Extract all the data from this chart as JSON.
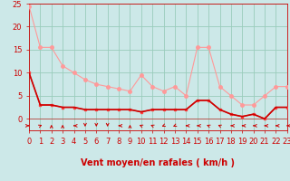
{
  "background_color": "#cce8e8",
  "grid_color": "#99ccbb",
  "xlabel": "Vent moyen/en rafales ( km/h )",
  "xlim": [
    0,
    23
  ],
  "ylim": [
    -2.5,
    25
  ],
  "yticks": [
    0,
    5,
    10,
    15,
    20,
    25
  ],
  "xticks": [
    0,
    1,
    2,
    3,
    4,
    5,
    6,
    7,
    8,
    9,
    10,
    11,
    12,
    13,
    14,
    15,
    16,
    17,
    18,
    19,
    20,
    21,
    22,
    23
  ],
  "line1_x": [
    0,
    1,
    2,
    3,
    4,
    5,
    6,
    7,
    8,
    9,
    10,
    11,
    12,
    13,
    14,
    15,
    16,
    17,
    18,
    19,
    20,
    21,
    22,
    23
  ],
  "line1_y": [
    24.5,
    15.5,
    15.5,
    11.5,
    10,
    8.5,
    7.5,
    7,
    6.5,
    6,
    9.5,
    7,
    6,
    7,
    5,
    15.5,
    15.5,
    7,
    5,
    3,
    3,
    5,
    7,
    7
  ],
  "line1_color": "#ff9999",
  "line2_x": [
    0,
    1,
    2,
    3,
    4,
    5,
    6,
    7,
    8,
    9,
    10,
    11,
    12,
    13,
    14,
    15,
    16,
    17,
    18,
    19,
    20,
    21,
    22,
    23
  ],
  "line2_y": [
    10,
    3,
    3,
    2.5,
    2.5,
    2,
    2,
    2,
    2,
    2,
    1.5,
    2,
    2,
    2,
    2,
    4,
    4,
    2,
    1,
    0.5,
    1,
    0,
    2.5,
    2.5
  ],
  "line2_color": "#ff4444",
  "line3_x": [
    0,
    1,
    2,
    3,
    4,
    5,
    6,
    7,
    8,
    9,
    10,
    11,
    12,
    13,
    14,
    15,
    16,
    17,
    18,
    19,
    20,
    21,
    22,
    23
  ],
  "line3_y": [
    10,
    3,
    3,
    2.5,
    2.5,
    2,
    2,
    2,
    2,
    2,
    1.5,
    2,
    2,
    2,
    2,
    4,
    4,
    2,
    1,
    0.5,
    1,
    0,
    2.5,
    2.5
  ],
  "line3_color": "#cc0000",
  "xlabel_fontsize": 7,
  "tick_fontsize": 6,
  "label_color": "#cc0000",
  "arrow_angles": [
    90,
    45,
    0,
    0,
    270,
    180,
    180,
    180,
    270,
    0,
    315,
    315,
    225,
    225,
    270,
    270,
    315,
    315,
    270,
    270,
    270,
    270,
    270,
    270
  ]
}
